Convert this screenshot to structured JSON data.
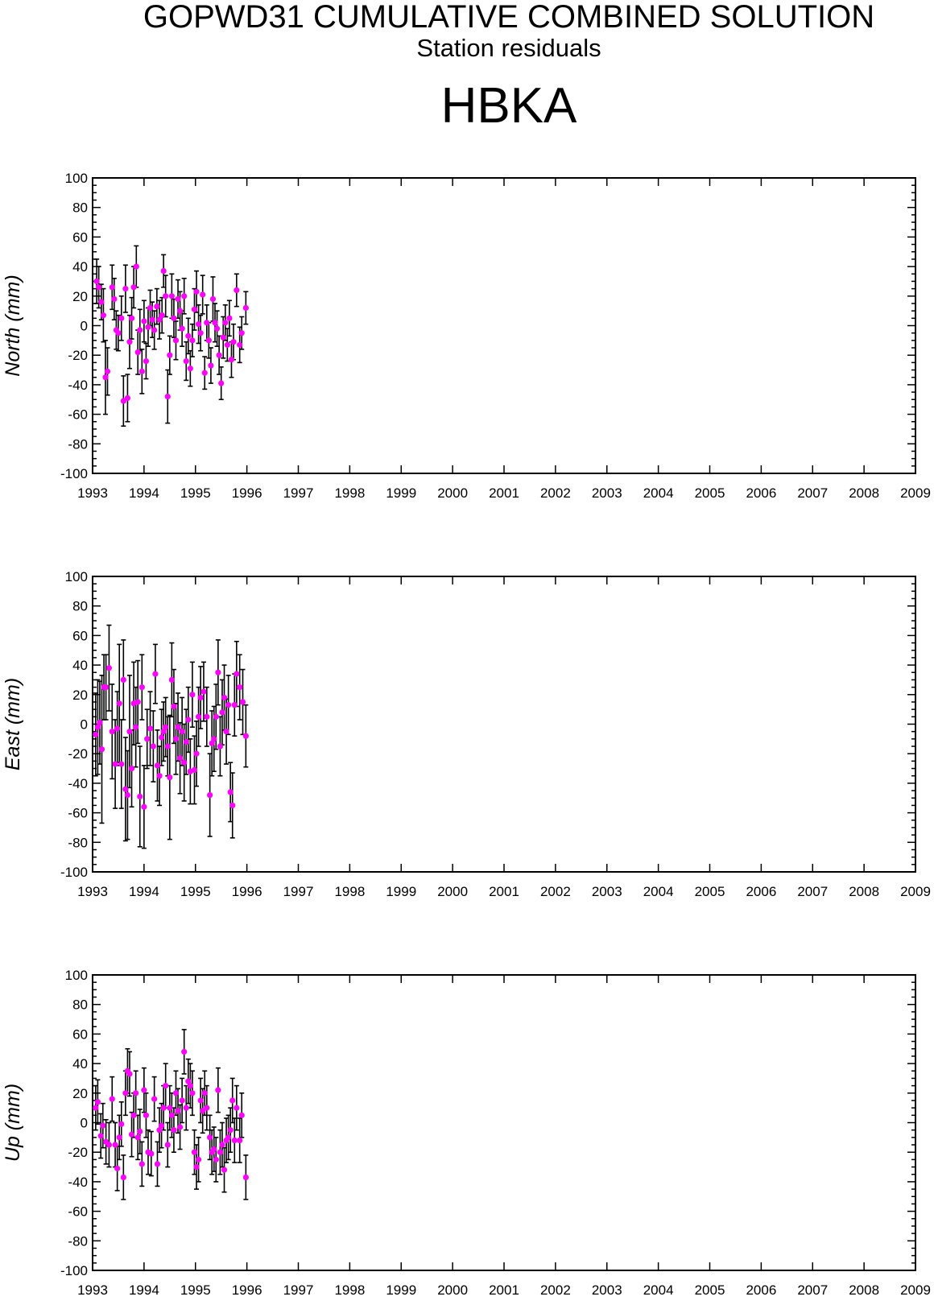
{
  "header": {
    "title": "GOPWD31 CUMULATIVE COMBINED SOLUTION",
    "subtitle": "Station residuals",
    "station": "HBKA"
  },
  "colors": {
    "point": "#ff00ff",
    "errorbar": "#000000",
    "axis": "#000000"
  },
  "chart_data": [
    {
      "type": "scatter",
      "ylabel": "North (mm)",
      "xlim": [
        1993,
        2009
      ],
      "ylim": [
        -100,
        100
      ],
      "x_ticks": [
        "1993",
        "1994",
        "1995",
        "1996",
        "1997",
        "1998",
        "1999",
        "2000",
        "2001",
        "2002",
        "2003",
        "2004",
        "2005",
        "2006",
        "2007",
        "2008",
        "2009"
      ],
      "y_ticks": [
        "100",
        "80",
        "60",
        "40",
        "20",
        "0",
        "-20",
        "-40",
        "-60",
        "-80",
        "-100"
      ],
      "series": [
        {
          "x": [
            1993.08,
            1993.12,
            1993.17,
            1993.21,
            1993.25,
            1993.29,
            1993.38,
            1993.42,
            1993.46,
            1993.5,
            1993.56,
            1993.6,
            1993.64,
            1993.68,
            1993.72,
            1993.76,
            1993.8,
            1993.85,
            1993.88,
            1993.92,
            1993.96,
            1994.0,
            1994.04,
            1994.08,
            1994.12,
            1994.16,
            1994.2,
            1994.25,
            1994.3,
            1994.35,
            1994.38,
            1994.42,
            1994.46,
            1994.5,
            1994.54,
            1994.58,
            1994.62,
            1994.66,
            1994.7,
            1994.74,
            1994.78,
            1994.82,
            1994.86,
            1994.9,
            1994.94,
            1994.98,
            1995.02,
            1995.06,
            1995.1,
            1995.14,
            1995.18,
            1995.22,
            1995.26,
            1995.3,
            1995.34,
            1995.38,
            1995.42,
            1995.46,
            1995.5,
            1995.54,
            1995.58,
            1995.62,
            1995.66,
            1995.7,
            1995.74,
            1995.8,
            1995.86,
            1995.9,
            1995.98
          ],
          "y": [
            30,
            26,
            16,
            7,
            -35,
            -31,
            26,
            18,
            -3,
            -5,
            5,
            -51,
            25,
            -49,
            -11,
            5,
            26,
            40,
            -18,
            -3,
            -31,
            3,
            -24,
            -1,
            12,
            4,
            -3,
            13,
            4,
            7,
            37,
            20,
            -48,
            -20,
            20,
            5,
            -10,
            18,
            10,
            -2,
            20,
            -24,
            -7,
            -29,
            -10,
            11,
            23,
            1,
            -5,
            21,
            -32,
            2,
            -10,
            -27,
            18,
            2,
            -2,
            -20,
            -39,
            -8,
            2,
            -13,
            5,
            -23,
            -11,
            24,
            -13,
            -5,
            12
          ],
          "err": [
            15,
            14,
            12,
            18,
            25,
            16,
            15,
            14,
            13,
            12,
            15,
            17,
            16,
            16,
            18,
            14,
            14,
            14,
            15,
            14,
            15,
            14,
            12,
            13,
            12,
            12,
            13,
            12,
            13,
            12,
            11,
            14,
            18,
            13,
            15,
            13,
            13,
            13,
            13,
            12,
            12,
            13,
            12,
            12,
            11,
            14,
            14,
            13,
            12,
            13,
            11,
            12,
            12,
            12,
            15,
            13,
            12,
            13,
            11,
            14,
            12,
            11,
            12,
            12,
            12,
            11,
            12,
            11,
            11
          ]
        }
      ]
    },
    {
      "type": "scatter",
      "ylabel": "East (mm)",
      "xlim": [
        1993,
        2009
      ],
      "ylim": [
        -100,
        100
      ],
      "x_ticks": [
        "1993",
        "1994",
        "1995",
        "1996",
        "1997",
        "1998",
        "1999",
        "2000",
        "2001",
        "2002",
        "2003",
        "2004",
        "2005",
        "2006",
        "2007",
        "2008",
        "2009"
      ],
      "y_ticks": [
        "100",
        "80",
        "60",
        "40",
        "20",
        "0",
        "-20",
        "-40",
        "-60",
        "-80",
        "-100"
      ],
      "series": [
        {
          "x": [
            1993.06,
            1993.1,
            1993.14,
            1993.18,
            1993.22,
            1993.26,
            1993.32,
            1993.38,
            1993.44,
            1993.48,
            1993.52,
            1993.56,
            1993.6,
            1993.64,
            1993.68,
            1993.72,
            1993.76,
            1993.8,
            1993.84,
            1993.88,
            1993.92,
            1993.96,
            1994.0,
            1994.06,
            1994.12,
            1994.18,
            1994.22,
            1994.26,
            1994.3,
            1994.34,
            1994.38,
            1994.42,
            1994.46,
            1994.5,
            1994.54,
            1994.58,
            1994.62,
            1994.66,
            1994.7,
            1994.74,
            1994.78,
            1994.82,
            1994.86,
            1994.9,
            1994.94,
            1994.98,
            1995.02,
            1995.06,
            1995.1,
            1995.16,
            1995.22,
            1995.28,
            1995.32,
            1995.36,
            1995.4,
            1995.44,
            1995.48,
            1995.52,
            1995.56,
            1995.6,
            1995.64,
            1995.68,
            1995.72,
            1995.76,
            1995.8,
            1995.86,
            1995.92,
            1995.98
          ],
          "y": [
            -7,
            -2,
            1,
            -17,
            25,
            25,
            38,
            -5,
            -27,
            -3,
            14,
            -27,
            30,
            -44,
            -48,
            -5,
            -30,
            14,
            -2,
            15,
            -49,
            25,
            -56,
            -10,
            -3,
            -15,
            34,
            -28,
            -35,
            -9,
            -5,
            -2,
            -15,
            -36,
            30,
            12,
            -10,
            -2,
            -23,
            -5,
            -26,
            -12,
            3,
            -32,
            20,
            -31,
            -20,
            5,
            18,
            22,
            5,
            -48,
            -13,
            -10,
            5,
            35,
            -15,
            8,
            18,
            -5,
            13,
            -46,
            -55,
            13,
            34,
            25,
            15,
            -8
          ],
          "err": [
            28,
            32,
            28,
            50,
            22,
            22,
            29,
            32,
            30,
            25,
            40,
            30,
            27,
            35,
            30,
            38,
            26,
            28,
            27,
            28,
            34,
            22,
            28,
            20,
            25,
            24,
            20,
            24,
            20,
            19,
            20,
            20,
            20,
            42,
            25,
            25,
            24,
            23,
            24,
            23,
            26,
            22,
            22,
            22,
            22,
            23,
            22,
            20,
            21,
            20,
            20,
            28,
            22,
            22,
            22,
            22,
            20,
            22,
            22,
            22,
            20,
            20,
            22,
            21,
            22,
            22,
            22,
            21
          ]
        }
      ]
    },
    {
      "type": "scatter",
      "ylabel": "Up (mm)",
      "xlim": [
        1993,
        2009
      ],
      "ylim": [
        -100,
        100
      ],
      "x_ticks": [
        "1993",
        "1994",
        "1995",
        "1996",
        "1997",
        "1998",
        "1999",
        "2000",
        "2001",
        "2002",
        "2003",
        "2004",
        "2005",
        "2006",
        "2007",
        "2008",
        "2009"
      ],
      "y_ticks": [
        "100",
        "80",
        "60",
        "40",
        "20",
        "0",
        "-20",
        "-40",
        "-60",
        "-80",
        "-100"
      ],
      "series": [
        {
          "x": [
            1993.06,
            1993.1,
            1993.16,
            1993.2,
            1993.26,
            1993.32,
            1993.38,
            1993.44,
            1993.48,
            1993.52,
            1993.56,
            1993.6,
            1993.64,
            1993.68,
            1993.72,
            1993.76,
            1993.8,
            1993.84,
            1993.88,
            1993.92,
            1993.96,
            1994.0,
            1994.04,
            1994.08,
            1994.14,
            1994.2,
            1994.26,
            1994.3,
            1994.34,
            1994.38,
            1994.42,
            1994.46,
            1994.5,
            1994.54,
            1994.58,
            1994.62,
            1994.66,
            1994.7,
            1994.74,
            1994.78,
            1994.82,
            1994.86,
            1994.9,
            1994.94,
            1994.98,
            1995.02,
            1995.06,
            1995.1,
            1995.14,
            1995.18,
            1995.22,
            1995.28,
            1995.32,
            1995.36,
            1995.4,
            1995.44,
            1995.48,
            1995.52,
            1995.56,
            1995.6,
            1995.64,
            1995.68,
            1995.72,
            1995.76,
            1995.8,
            1995.86,
            1995.9,
            1995.98
          ],
          "y": [
            10,
            14,
            -9,
            -2,
            -13,
            -15,
            16,
            -15,
            -31,
            -10,
            -1,
            -37,
            20,
            35,
            33,
            -8,
            5,
            20,
            -10,
            -6,
            -28,
            22,
            5,
            -20,
            -21,
            16,
            -28,
            -5,
            -2,
            10,
            25,
            -15,
            10,
            5,
            -5,
            20,
            8,
            -3,
            15,
            48,
            10,
            28,
            25,
            20,
            -20,
            -30,
            -25,
            15,
            8,
            20,
            10,
            -10,
            -20,
            -18,
            -25,
            22,
            -20,
            -15,
            -32,
            -12,
            -10,
            -5,
            15,
            -12,
            10,
            -12,
            5,
            -37
          ]
        }
      ]
    }
  ]
}
